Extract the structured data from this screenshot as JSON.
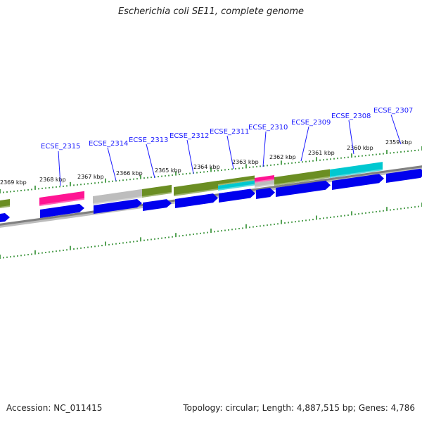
{
  "title": "Escherichia coli SE11, complete genome",
  "accession": "Accession: NC_011415",
  "stats": "Topology: circular; Length: 4,887,515 bp; Genes: 4,786",
  "colors": {
    "gene_label": "#1a1aff",
    "cds": "#0000ee",
    "ticks": "#2a8a2a",
    "backbone": "#808080",
    "cog_olive": "#6b8e23",
    "cog_pink": "#ff1493",
    "cog_gray": "#bdbdbd",
    "cog_cyan": "#00c8d0"
  },
  "tick_labels": [
    "2369 kbp",
    "2368 kbp",
    "2367 kbp",
    "2366 kbp",
    "2365 kbp",
    "2364 kbp",
    "2363 kbp",
    "2362 kbp",
    "2361 kbp",
    "2360 kbp",
    "2359 kbp"
  ],
  "gene_labels": [
    "ECSE_2315",
    "ECSE_2314",
    "ECSE_2313",
    "ECSE_2312",
    "ECSE_2311",
    "ECSE_2310",
    "ECSE_2309",
    "ECSE_2308",
    "ECSE_2307"
  ]
}
